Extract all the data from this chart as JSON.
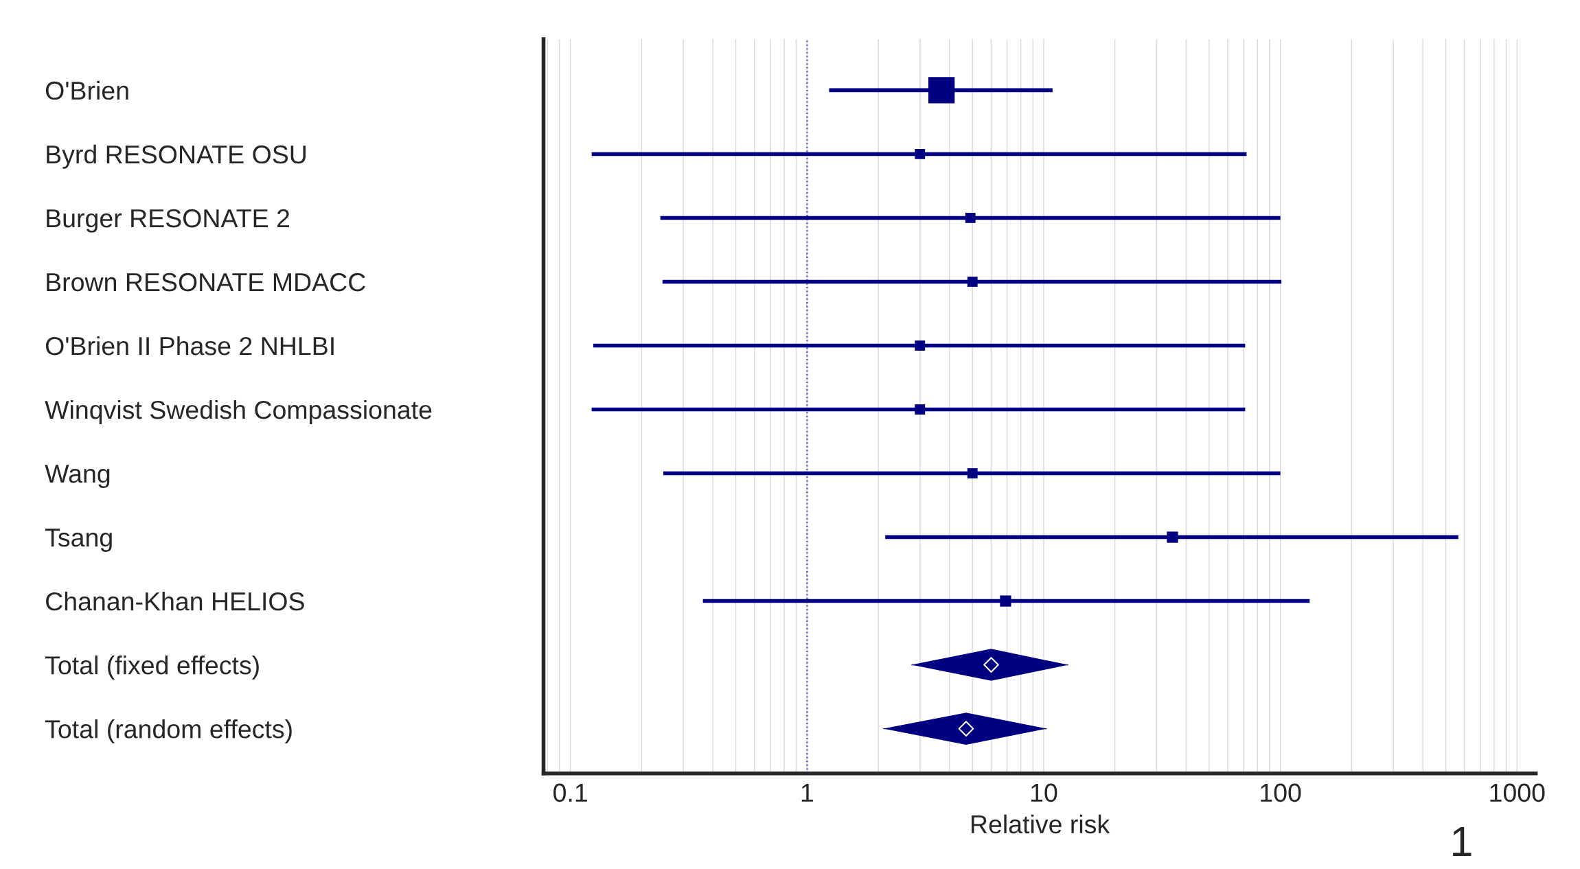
{
  "chart_data": {
    "type": "scatter",
    "orientation": "horizontal",
    "xlabel": "Relative risk",
    "categories": [
      "O'Brien",
      "Byrd RESONATE OSU",
      "Burger RESONATE 2",
      "Brown RESONATE MDACC",
      "O'Brien II Phase 2 NHLBI",
      "Winqvist Swedish Compassionate",
      "Wang",
      "Tsang",
      "Chanan-Khan HELIOS",
      "Total (fixed effects)",
      "Total (random effects)"
    ],
    "series": [
      {
        "type": "bubble",
        "marker": "square",
        "color": "#000080",
        "values": [
          3.7,
          3.0,
          4.9,
          5.0,
          3.0,
          3.0,
          5.0,
          35,
          6.9,
          null,
          null
        ],
        "sizes": [
          1,
          0.15,
          0.15,
          0.15,
          0.15,
          0.15,
          0.15,
          0.18,
          0.18,
          null,
          null
        ],
        "errors": [
          [
            1.24,
            10.9
          ],
          [
            0.123,
            72
          ],
          [
            0.24,
            100
          ],
          [
            0.245,
            101
          ],
          [
            0.125,
            71
          ],
          [
            0.123,
            71
          ],
          [
            0.247,
            100
          ],
          [
            2.14,
            565
          ],
          [
            0.363,
            133
          ],
          null,
          null
        ]
      },
      {
        "type": "scatter",
        "marker": "diamond",
        "color": "#000080",
        "values": [
          null,
          null,
          null,
          null,
          null,
          null,
          null,
          null,
          null,
          6.0,
          4.7
        ],
        "errors": [
          null,
          null,
          null,
          null,
          null,
          null,
          null,
          null,
          null,
          [
            2.76,
            12.7
          ],
          [
            2.1,
            10.3
          ]
        ]
      }
    ],
    "log": "x",
    "xlim": [
      0.077,
      1200
    ],
    "xticks": [
      0.1,
      1,
      10,
      100,
      1000
    ],
    "grid": "x",
    "ref_lines": [
      {
        "axis": "x",
        "value": 1,
        "color": "#4040c0",
        "line_style": "dotted"
      }
    ],
    "annotations": [
      "1"
    ]
  }
}
